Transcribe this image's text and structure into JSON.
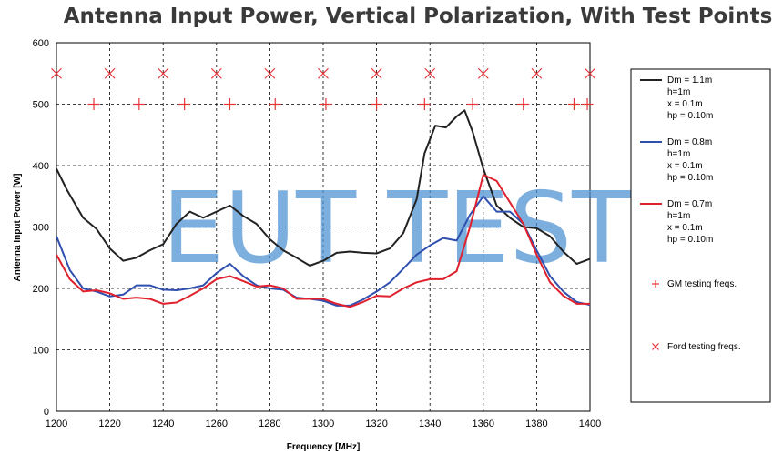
{
  "chart_data": {
    "type": "line",
    "title": "Antenna Input Power, Vertical Polarization, With Test Points",
    "xlabel": "Frequency [MHz]",
    "ylabel": "Antenna Input Power [W]",
    "xlim": [
      1200,
      1400
    ],
    "ylim": [
      0,
      600
    ],
    "xticks": [
      1200,
      1220,
      1240,
      1260,
      1280,
      1300,
      1320,
      1340,
      1360,
      1380,
      1400
    ],
    "yticks": [
      0,
      100,
      200,
      300,
      400,
      500,
      600
    ],
    "grid": true,
    "legend_position": "right",
    "watermark": "EUT TEST",
    "series": [
      {
        "legend_lines": [
          "Dm = 1.1m",
          "h=1m",
          "x = 0.1m",
          "hp = 0.10m"
        ],
        "color": "#222222",
        "points": [
          [
            1200,
            395
          ],
          [
            1204,
            360
          ],
          [
            1210,
            315
          ],
          [
            1215,
            297
          ],
          [
            1220,
            265
          ],
          [
            1225,
            245
          ],
          [
            1230,
            250
          ],
          [
            1235,
            262
          ],
          [
            1240,
            272
          ],
          [
            1245,
            305
          ],
          [
            1250,
            325
          ],
          [
            1255,
            315
          ],
          [
            1260,
            325
          ],
          [
            1265,
            335
          ],
          [
            1270,
            318
          ],
          [
            1275,
            305
          ],
          [
            1280,
            280
          ],
          [
            1285,
            262
          ],
          [
            1290,
            250
          ],
          [
            1295,
            237
          ],
          [
            1300,
            245
          ],
          [
            1305,
            258
          ],
          [
            1310,
            260
          ],
          [
            1315,
            258
          ],
          [
            1320,
            257
          ],
          [
            1325,
            265
          ],
          [
            1330,
            290
          ],
          [
            1335,
            345
          ],
          [
            1338,
            420
          ],
          [
            1342,
            465
          ],
          [
            1346,
            462
          ],
          [
            1350,
            480
          ],
          [
            1353,
            490
          ],
          [
            1356,
            455
          ],
          [
            1360,
            395
          ],
          [
            1365,
            335
          ],
          [
            1370,
            315
          ],
          [
            1375,
            300
          ],
          [
            1380,
            298
          ],
          [
            1385,
            285
          ],
          [
            1390,
            260
          ],
          [
            1395,
            240
          ],
          [
            1400,
            248
          ]
        ]
      },
      {
        "legend_lines": [
          "Dm = 0.8m",
          "h=1m",
          "x = 0.1m",
          "hp = 0.10m"
        ],
        "color": "#3050b0",
        "points": [
          [
            1200,
            285
          ],
          [
            1205,
            230
          ],
          [
            1210,
            200
          ],
          [
            1215,
            195
          ],
          [
            1220,
            187
          ],
          [
            1225,
            190
          ],
          [
            1230,
            205
          ],
          [
            1235,
            205
          ],
          [
            1240,
            198
          ],
          [
            1245,
            197
          ],
          [
            1250,
            200
          ],
          [
            1255,
            205
          ],
          [
            1260,
            225
          ],
          [
            1265,
            240
          ],
          [
            1270,
            220
          ],
          [
            1275,
            205
          ],
          [
            1280,
            200
          ],
          [
            1285,
            198
          ],
          [
            1290,
            185
          ],
          [
            1295,
            183
          ],
          [
            1300,
            180
          ],
          [
            1305,
            172
          ],
          [
            1310,
            172
          ],
          [
            1315,
            182
          ],
          [
            1320,
            195
          ],
          [
            1325,
            210
          ],
          [
            1330,
            232
          ],
          [
            1335,
            255
          ],
          [
            1340,
            270
          ],
          [
            1345,
            282
          ],
          [
            1350,
            278
          ],
          [
            1355,
            320
          ],
          [
            1360,
            350
          ],
          [
            1365,
            325
          ],
          [
            1370,
            325
          ],
          [
            1375,
            305
          ],
          [
            1380,
            262
          ],
          [
            1385,
            220
          ],
          [
            1390,
            195
          ],
          [
            1395,
            178
          ],
          [
            1400,
            173
          ]
        ]
      },
      {
        "legend_lines": [
          "Dm = 0.7m",
          "h=1m",
          "x = 0.1m",
          "hp = 0.10m"
        ],
        "color": "#e0202c",
        "points": [
          [
            1200,
            255
          ],
          [
            1205,
            215
          ],
          [
            1210,
            195
          ],
          [
            1215,
            197
          ],
          [
            1220,
            192
          ],
          [
            1225,
            183
          ],
          [
            1230,
            185
          ],
          [
            1235,
            183
          ],
          [
            1240,
            175
          ],
          [
            1245,
            177
          ],
          [
            1250,
            188
          ],
          [
            1255,
            200
          ],
          [
            1260,
            215
          ],
          [
            1265,
            220
          ],
          [
            1270,
            212
          ],
          [
            1275,
            203
          ],
          [
            1280,
            205
          ],
          [
            1285,
            200
          ],
          [
            1290,
            183
          ],
          [
            1295,
            183
          ],
          [
            1300,
            183
          ],
          [
            1305,
            175
          ],
          [
            1310,
            170
          ],
          [
            1315,
            178
          ],
          [
            1320,
            188
          ],
          [
            1325,
            187
          ],
          [
            1330,
            200
          ],
          [
            1335,
            210
          ],
          [
            1340,
            215
          ],
          [
            1345,
            215
          ],
          [
            1350,
            228
          ],
          [
            1355,
            300
          ],
          [
            1360,
            385
          ],
          [
            1365,
            375
          ],
          [
            1370,
            340
          ],
          [
            1375,
            305
          ],
          [
            1380,
            255
          ],
          [
            1385,
            210
          ],
          [
            1390,
            188
          ],
          [
            1395,
            175
          ],
          [
            1400,
            175
          ]
        ]
      }
    ],
    "markers": [
      {
        "legend_text": "GM testing freqs.",
        "symbol": "+",
        "color": "#e8333a",
        "y": 500,
        "x": [
          1214,
          1231,
          1248,
          1265,
          1282,
          1301,
          1320,
          1338,
          1356,
          1375,
          1394,
          1399
        ]
      },
      {
        "legend_text": "Ford testing freqs.",
        "symbol": "x",
        "color": "#e8333a",
        "y": 550,
        "x": [
          1200,
          1220,
          1240,
          1260,
          1280,
          1300,
          1320,
          1340,
          1360,
          1380,
          1400
        ]
      }
    ]
  }
}
